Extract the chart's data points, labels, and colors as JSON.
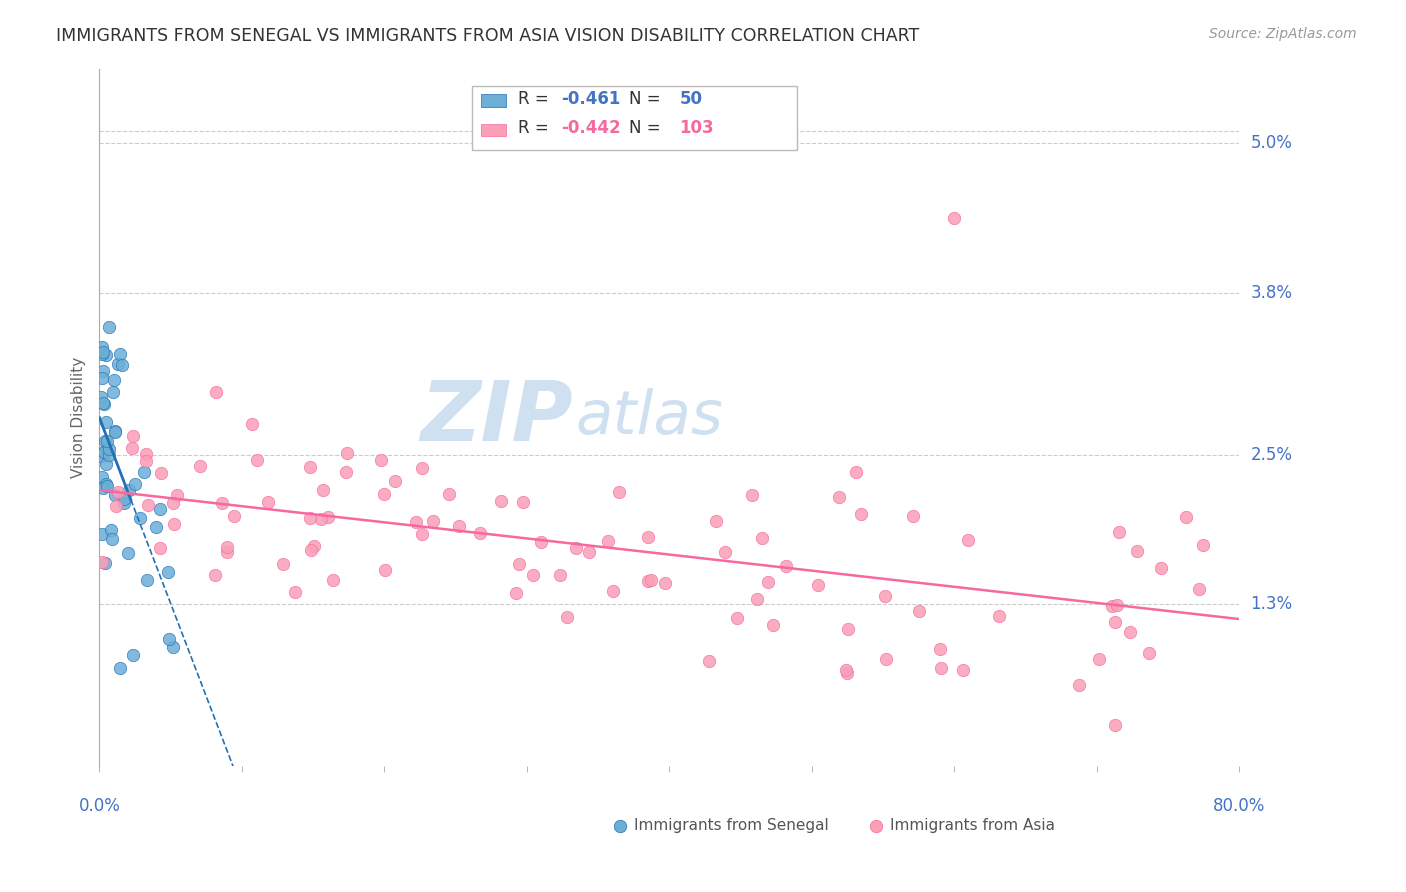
{
  "title": "IMMIGRANTS FROM SENEGAL VS IMMIGRANTS FROM ASIA VISION DISABILITY CORRELATION CHART",
  "source": "Source: ZipAtlas.com",
  "ylabel": "Vision Disability",
  "ytick_labels": [
    "1.3%",
    "2.5%",
    "3.8%",
    "5.0%"
  ],
  "ytick_values": [
    0.013,
    0.025,
    0.038,
    0.05
  ],
  "legend_blue_rv": "-0.461",
  "legend_blue_nv": "50",
  "legend_pink_rv": "-0.442",
  "legend_pink_nv": "103",
  "label_blue": "Immigrants from Senegal",
  "label_pink": "Immigrants from Asia",
  "blue_color": "#6baed6",
  "pink_color": "#fa9fb5",
  "blue_line_color": "#2171b5",
  "pink_line_color": "#f768a1",
  "background_color": "#ffffff",
  "grid_color": "#cccccc",
  "axis_label_color": "#4472c4",
  "xlim": [
    0.0,
    0.8
  ],
  "ylim": [
    0.0,
    0.056
  ]
}
